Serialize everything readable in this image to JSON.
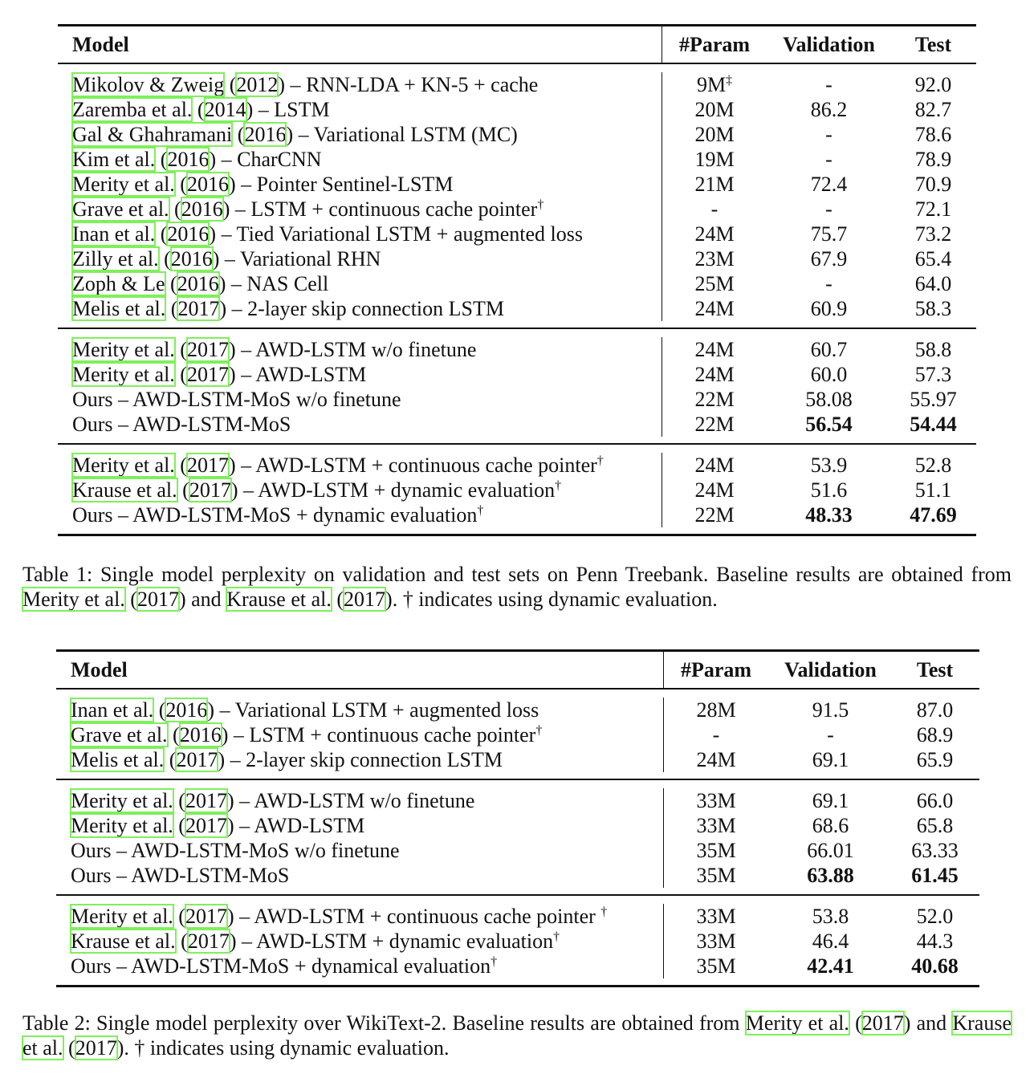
{
  "headers": {
    "model": "Model",
    "param": "#Param",
    "val": "Validation",
    "test": "Test"
  },
  "table1": {
    "groups": [
      [
        {
          "cite": "Mikolov & Zweig",
          "year": "2012",
          "desc": "RNN-LDA + KN-5 + cache",
          "sup": "",
          "param": "9M",
          "param_sup": "‡",
          "val": "-",
          "test": "92.0"
        },
        {
          "cite": "Zaremba et al.",
          "year": "2014",
          "desc": "LSTM",
          "sup": "",
          "param": "20M",
          "val": "86.2",
          "test": "82.7"
        },
        {
          "cite": "Gal & Ghahramani",
          "year": "2016",
          "desc": "Variational LSTM (MC)",
          "sup": "",
          "param": "20M",
          "val": "-",
          "test": "78.6"
        },
        {
          "cite": "Kim et al.",
          "year": "2016",
          "desc": "CharCNN",
          "sup": "",
          "param": "19M",
          "val": "-",
          "test": "78.9"
        },
        {
          "cite": "Merity et al.",
          "year": "2016",
          "desc": "Pointer Sentinel-LSTM",
          "sup": "",
          "param": "21M",
          "val": "72.4",
          "test": "70.9"
        },
        {
          "cite": "Grave et al.",
          "year": "2016",
          "desc": "LSTM + continuous cache pointer",
          "sup": "†",
          "param": "-",
          "val": "-",
          "test": "72.1"
        },
        {
          "cite": "Inan et al.",
          "year": "2016",
          "desc": "Tied Variational LSTM + augmented loss",
          "sup": "",
          "param": "24M",
          "val": "75.7",
          "test": "73.2"
        },
        {
          "cite": "Zilly et al.",
          "year": "2016",
          "desc": "Variational RHN",
          "sup": "",
          "param": "23M",
          "val": "67.9",
          "test": "65.4"
        },
        {
          "cite": "Zoph & Le",
          "year": "2016",
          "desc": "NAS Cell",
          "sup": "",
          "param": "25M",
          "val": "-",
          "test": "64.0"
        },
        {
          "cite": "Melis et al.",
          "year": "2017",
          "desc": "2-layer skip connection LSTM",
          "sup": "",
          "param": "24M",
          "val": "60.9",
          "test": "58.3"
        }
      ],
      [
        {
          "cite": "Merity et al.",
          "year": "2017",
          "desc": "AWD-LSTM w/o finetune",
          "sup": "",
          "param": "24M",
          "val": "60.7",
          "test": "58.8"
        },
        {
          "cite": "Merity et al.",
          "year": "2017",
          "desc": "AWD-LSTM",
          "sup": "",
          "param": "24M",
          "val": "60.0",
          "test": "57.3"
        },
        {
          "cite": "",
          "year": "",
          "desc": "Ours – AWD-LSTM-MoS w/o finetune",
          "sup": "",
          "param": "22M",
          "val": "58.08",
          "test": "55.97"
        },
        {
          "cite": "",
          "year": "",
          "desc": "Ours – AWD-LSTM-MoS",
          "sup": "",
          "param": "22M",
          "val": "56.54",
          "test": "54.44",
          "bold": true
        }
      ],
      [
        {
          "cite": "Merity et al.",
          "year": "2017",
          "desc": "AWD-LSTM + continuous cache pointer",
          "sup": "†",
          "param": "24M",
          "val": "53.9",
          "test": "52.8"
        },
        {
          "cite": "Krause et al.",
          "year": "2017",
          "desc": "AWD-LSTM + dynamic evaluation",
          "sup": "†",
          "param": "24M",
          "val": "51.6",
          "test": "51.1"
        },
        {
          "cite": "",
          "year": "",
          "desc": "Ours – AWD-LSTM-MoS + dynamic evaluation",
          "sup": "†",
          "param": "22M",
          "val": "48.33",
          "test": "47.69",
          "bold": true
        }
      ]
    ],
    "caption": {
      "label": "Table 1:",
      "text1": "Single model perplexity on validation and test sets on Penn Treebank. Baseline results are obtained from",
      "cite1": "Merity et al.",
      "year1": "2017",
      "and": "and",
      "cite2": "Krause et al.",
      "year2": "2017",
      "text2": ". † indicates using dynamic evaluation."
    }
  },
  "table2": {
    "groups": [
      [
        {
          "cite": "Inan et al.",
          "year": "2016",
          "desc": "Variational LSTM + augmented loss",
          "sup": "",
          "param": "28M",
          "val": "91.5",
          "test": "87.0"
        },
        {
          "cite": "Grave et al.",
          "year": "2016",
          "desc": "LSTM + continuous cache pointer",
          "sup": "†",
          "param": "-",
          "val": "-",
          "test": "68.9"
        },
        {
          "cite": "Melis et al.",
          "year": "2017",
          "desc": "2-layer skip connection LSTM",
          "sup": "",
          "param": "24M",
          "val": "69.1",
          "test": "65.9"
        }
      ],
      [
        {
          "cite": "Merity et al.",
          "year": "2017",
          "desc": "AWD-LSTM w/o finetune",
          "sup": "",
          "param": "33M",
          "val": "69.1",
          "test": "66.0"
        },
        {
          "cite": "Merity et al.",
          "year": "2017",
          "desc": "AWD-LSTM",
          "sup": "",
          "param": "33M",
          "val": "68.6",
          "test": "65.8"
        },
        {
          "cite": "",
          "year": "",
          "desc": "Ours – AWD-LSTM-MoS w/o finetune",
          "sup": "",
          "param": "35M",
          "val": "66.01",
          "test": "63.33"
        },
        {
          "cite": "",
          "year": "",
          "desc": "Ours – AWD-LSTM-MoS",
          "sup": "",
          "param": "35M",
          "val": "63.88",
          "test": "61.45",
          "bold": true
        }
      ],
      [
        {
          "cite": "Merity et al.",
          "year": "2017",
          "desc": "AWD-LSTM + continuous cache pointer ",
          "sup": "†",
          "param": "33M",
          "val": "53.8",
          "test": "52.0"
        },
        {
          "cite": "Krause et al.",
          "year": "2017",
          "desc": "AWD-LSTM + dynamic evaluation",
          "sup": "†",
          "param": "33M",
          "val": "46.4",
          "test": "44.3"
        },
        {
          "cite": "",
          "year": "",
          "desc": "Ours – AWD-LSTM-MoS + dynamical evaluation",
          "sup": "†",
          "param": "35M",
          "val": "42.41",
          "test": "40.68",
          "bold": true
        }
      ]
    ],
    "caption": {
      "label": "Table 2:",
      "text1": "Single model perplexity over WikiText-2. Baseline results are obtained from",
      "cite1": "Merity et al.",
      "year1": "2017",
      "and": "and",
      "cite2": "Krause et al.",
      "year2": "2017",
      "text2": ". † indicates using dynamic evaluation."
    }
  }
}
